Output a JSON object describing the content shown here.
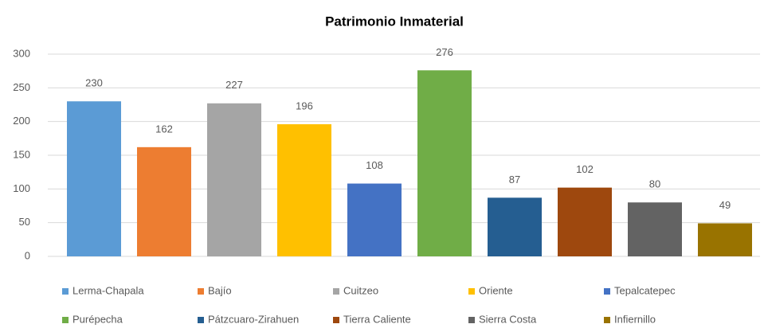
{
  "chart_data": {
    "type": "bar",
    "title": "Patrimonio Inmaterial",
    "categories": [
      "Lerma-Chapala",
      "Bajío",
      "Cuitzeo",
      "Oriente",
      "Tepalcatepec",
      "Purépecha",
      "Pátzcuaro-Zirahuen",
      "Tierra Caliente",
      "Sierra Costa",
      "Infiernillo"
    ],
    "values": [
      230,
      162,
      227,
      196,
      108,
      276,
      87,
      102,
      80,
      49
    ],
    "colors": [
      "#5b9bd5",
      "#ed7d31",
      "#a5a5a5",
      "#ffc000",
      "#4472c4",
      "#70ad47",
      "#255e91",
      "#9e480e",
      "#636363",
      "#997300"
    ],
    "ylim": [
      0,
      300
    ],
    "yticks": [
      0,
      50,
      100,
      150,
      200,
      250,
      300
    ],
    "grid": true,
    "legend": "bottom"
  }
}
